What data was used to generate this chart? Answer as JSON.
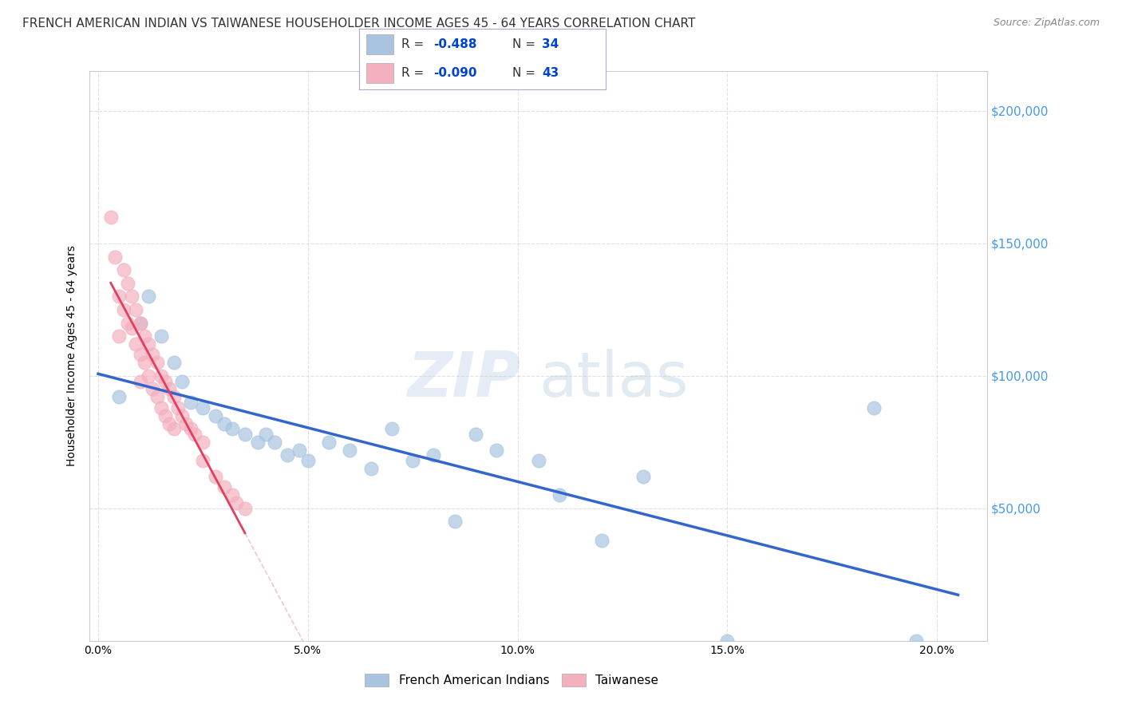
{
  "title": "FRENCH AMERICAN INDIAN VS TAIWANESE HOUSEHOLDER INCOME AGES 45 - 64 YEARS CORRELATION CHART",
  "source": "Source: ZipAtlas.com",
  "ylabel": "Householder Income Ages 45 - 64 years",
  "xlabel_ticks": [
    "0.0%",
    "5.0%",
    "10.0%",
    "15.0%",
    "20.0%"
  ],
  "xlabel_vals": [
    0.0,
    0.05,
    0.1,
    0.15,
    0.2
  ],
  "ylim": [
    0,
    215000
  ],
  "xlim": [
    -0.002,
    0.212
  ],
  "yticks": [
    0,
    50000,
    100000,
    150000,
    200000
  ],
  "ytick_labels": [
    "",
    "$50,000",
    "$100,000",
    "$150,000",
    "$200,000"
  ],
  "watermark_zip": "ZIP",
  "watermark_atlas": "atlas",
  "legend_r_blue": "-0.488",
  "legend_n_blue": "34",
  "legend_r_pink": "-0.090",
  "legend_n_pink": "43",
  "blue_scatter_x": [
    0.005,
    0.01,
    0.012,
    0.015,
    0.018,
    0.02,
    0.022,
    0.025,
    0.028,
    0.03,
    0.032,
    0.035,
    0.038,
    0.04,
    0.042,
    0.045,
    0.048,
    0.05,
    0.055,
    0.06,
    0.065,
    0.07,
    0.075,
    0.08,
    0.085,
    0.09,
    0.095,
    0.105,
    0.11,
    0.12,
    0.13,
    0.15,
    0.185,
    0.195
  ],
  "blue_scatter_y": [
    92000,
    120000,
    130000,
    115000,
    105000,
    98000,
    90000,
    88000,
    85000,
    82000,
    80000,
    78000,
    75000,
    78000,
    75000,
    70000,
    72000,
    68000,
    75000,
    72000,
    65000,
    80000,
    68000,
    70000,
    45000,
    78000,
    72000,
    68000,
    55000,
    38000,
    62000,
    0,
    88000,
    0
  ],
  "pink_scatter_x": [
    0.003,
    0.004,
    0.005,
    0.005,
    0.006,
    0.006,
    0.007,
    0.007,
    0.008,
    0.008,
    0.009,
    0.009,
    0.01,
    0.01,
    0.01,
    0.011,
    0.011,
    0.012,
    0.012,
    0.013,
    0.013,
    0.014,
    0.014,
    0.015,
    0.015,
    0.016,
    0.016,
    0.017,
    0.017,
    0.018,
    0.018,
    0.019,
    0.02,
    0.021,
    0.022,
    0.023,
    0.025,
    0.025,
    0.028,
    0.03,
    0.032,
    0.033,
    0.035
  ],
  "pink_scatter_y": [
    160000,
    145000,
    130000,
    115000,
    140000,
    125000,
    135000,
    120000,
    130000,
    118000,
    125000,
    112000,
    120000,
    108000,
    98000,
    115000,
    105000,
    112000,
    100000,
    108000,
    95000,
    105000,
    92000,
    100000,
    88000,
    98000,
    85000,
    95000,
    82000,
    92000,
    80000,
    88000,
    85000,
    82000,
    80000,
    78000,
    75000,
    68000,
    62000,
    58000,
    55000,
    52000,
    50000
  ],
  "blue_color": "#a8c4e0",
  "pink_color": "#f4b0bf",
  "blue_line_color": "#3366cc",
  "pink_line_color": "#e04060",
  "dashed_line_color": "#e8a0b0",
  "grid_color": "#cccccc",
  "background_color": "#ffffff",
  "right_ytick_color": "#4499ee",
  "title_fontsize": 11,
  "axis_fontsize": 10,
  "legend_fontsize": 11,
  "legend_r_color": "#0044cc",
  "legend_n_color": "#0044cc"
}
